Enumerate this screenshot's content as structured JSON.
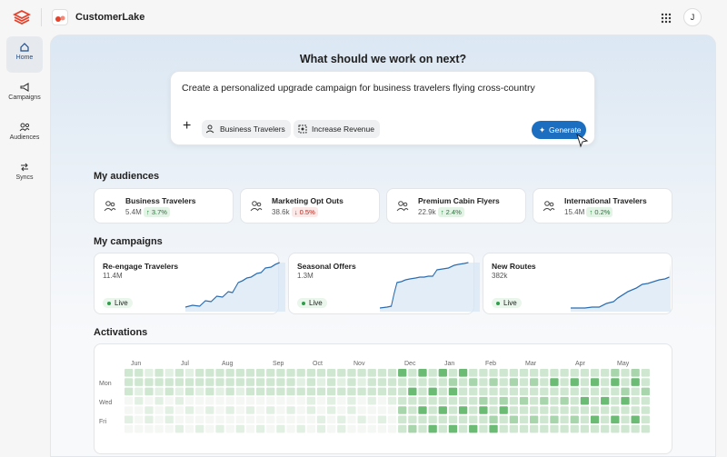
{
  "app": {
    "name": "CustomerLake",
    "avatar": "J"
  },
  "nav": [
    "Home",
    "Campaigns",
    "Audiences",
    "Syncs"
  ],
  "prompt": {
    "heading": "What should we work on next?",
    "input": "Create a personalized upgrade campaign for business travelers flying cross-country",
    "chips": [
      "Business Travelers",
      "Increase Revenue"
    ],
    "button": "Generate"
  },
  "audiences": {
    "title": "My audiences",
    "items": [
      {
        "name": "Business Travelers",
        "size": "5.4M",
        "change": "3.7%",
        "direction": "up"
      },
      {
        "name": "Marketing Opt Outs",
        "size": "38.6k",
        "change": "0.5%",
        "direction": "down"
      },
      {
        "name": "Premium Cabin Flyers",
        "size": "22.9k",
        "change": "2.4%",
        "direction": "up"
      },
      {
        "name": "International Travelers",
        "size": "15.4M",
        "change": "0.2%",
        "direction": "up"
      }
    ]
  },
  "campaigns": {
    "title": "My campaigns",
    "items": [
      {
        "name": "Re-engage Travelers",
        "size": "11.4M",
        "status": "Live"
      },
      {
        "name": "Seasonal Offers",
        "size": "1.3M",
        "status": "Live"
      },
      {
        "name": "New Routes",
        "size": "382k",
        "status": "Live"
      }
    ]
  },
  "activations": {
    "title": "Activations",
    "months": [
      "Jun",
      "Jul",
      "Aug",
      "Sep",
      "Oct",
      "Nov",
      "Dec",
      "Jan",
      "Feb",
      "Mar",
      "Apr",
      "May"
    ],
    "days": [
      "Mon",
      "Wed",
      "Fri"
    ]
  }
}
